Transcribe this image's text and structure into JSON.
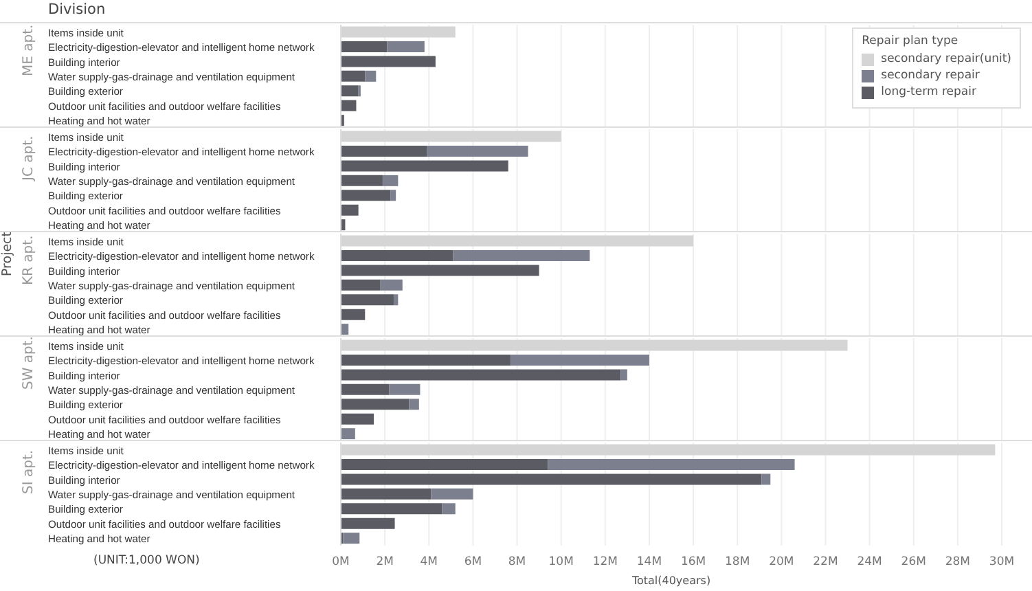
{
  "chart_data": [
    {
      "type": "bar",
      "orientation": "horizontal",
      "stacked": true,
      "ylabel": "ME apt.",
      "annotations": [
        "Division",
        "Project"
      ],
      "legend": "top right",
      "legend_title": "Repair plan type",
      "grid": "x",
      "tick_labels": "y",
      "xlim": [
        0,
        30
      ],
      "xticks": [
        0,
        2,
        4,
        6,
        8,
        10,
        12,
        14,
        16,
        18,
        20,
        22,
        24,
        26,
        28,
        30
      ],
      "categories": [
        "Items inside unit",
        "Electricity-digestion-elevator and intelligent home network",
        "Building interior",
        "Water supply-gas-drainage and ventilation equipment",
        "Building exterior",
        "Outdoor unit facilities and outdoor welfare facilities",
        "Heating and hot water"
      ],
      "series": [
        {
          "name": "long-term repair",
          "color": "#5a5b63",
          "values": [
            null,
            2.1,
            4.3,
            1.1,
            0.8,
            0.7,
            0.15
          ]
        },
        {
          "name": "secondary repair",
          "color": "#7b7f8e",
          "values": [
            null,
            1.7,
            null,
            0.5,
            0.1,
            null,
            null
          ]
        },
        {
          "name": "secondary repair(unit)",
          "color": "#d5d5d5",
          "values": [
            5.2,
            null,
            null,
            null,
            null,
            null,
            null
          ]
        }
      ]
    },
    {
      "type": "bar",
      "orientation": "horizontal",
      "stacked": true,
      "ylabel": "JC apt.",
      "grid": "x",
      "tick_labels": "y",
      "xlim": [
        0,
        30
      ],
      "xticks": [
        0,
        2,
        4,
        6,
        8,
        10,
        12,
        14,
        16,
        18,
        20,
        22,
        24,
        26,
        28,
        30
      ],
      "categories": [
        "Items inside unit",
        "Electricity-digestion-elevator and intelligent home network",
        "Building interior",
        "Water supply-gas-drainage and ventilation equipment",
        "Building exterior",
        "Outdoor unit facilities and outdoor welfare facilities",
        "Heating and hot water"
      ],
      "series": [
        {
          "color": "#5a5b63",
          "values": [
            null,
            3.9,
            7.6,
            1.9,
            2.25,
            0.8,
            0.2
          ]
        },
        {
          "color": "#7b7f8e",
          "values": [
            null,
            4.6,
            null,
            0.7,
            0.25,
            null,
            null
          ]
        },
        {
          "color": "#d5d5d5",
          "values": [
            10.0,
            null,
            null,
            null,
            null,
            null,
            null
          ]
        }
      ]
    },
    {
      "type": "bar",
      "orientation": "horizontal",
      "stacked": true,
      "ylabel": "KR apt.",
      "grid": "x",
      "tick_labels": "y",
      "xlim": [
        0,
        30
      ],
      "xticks": [
        0,
        2,
        4,
        6,
        8,
        10,
        12,
        14,
        16,
        18,
        20,
        22,
        24,
        26,
        28,
        30
      ],
      "categories": [
        "Items inside unit",
        "Electricity-digestion-elevator and intelligent home network",
        "Building interior",
        "Water supply-gas-drainage and ventilation equipment",
        "Building exterior",
        "Outdoor unit facilities and outdoor welfare facilities",
        "Heating and hot water"
      ],
      "series": [
        {
          "color": "#5a5b63",
          "values": [
            null,
            5.1,
            9.0,
            1.8,
            2.4,
            1.1,
            null
          ]
        },
        {
          "color": "#7b7f8e",
          "values": [
            null,
            6.2,
            null,
            1.0,
            0.2,
            null,
            0.35
          ]
        },
        {
          "color": "#d5d5d5",
          "values": [
            16.0,
            null,
            null,
            null,
            null,
            null,
            null
          ]
        }
      ]
    },
    {
      "type": "bar",
      "orientation": "horizontal",
      "stacked": true,
      "ylabel": "SW apt.",
      "grid": "x",
      "tick_labels": "y",
      "xlim": [
        0,
        30
      ],
      "xticks": [
        0,
        2,
        4,
        6,
        8,
        10,
        12,
        14,
        16,
        18,
        20,
        22,
        24,
        26,
        28,
        30
      ],
      "categories": [
        "Items inside unit",
        "Electricity-digestion-elevator and intelligent home network",
        "Building interior",
        "Water supply-gas-drainage and ventilation equipment",
        "Building exterior",
        "Outdoor unit facilities and outdoor welfare facilities",
        "Heating and hot water"
      ],
      "series": [
        {
          "color": "#5a5b63",
          "values": [
            null,
            7.7,
            12.7,
            2.2,
            3.1,
            1.5,
            null
          ]
        },
        {
          "color": "#7b7f8e",
          "values": [
            null,
            6.3,
            0.3,
            1.4,
            0.45,
            null,
            0.65
          ]
        },
        {
          "color": "#d5d5d5",
          "values": [
            23.0,
            null,
            null,
            null,
            null,
            null,
            null
          ]
        }
      ]
    },
    {
      "type": "bar",
      "orientation": "horizontal",
      "stacked": true,
      "ylabel": "SI apt.",
      "xlabel": "Total(40years)",
      "annotations": [
        "(UNIT:1,000 WON)"
      ],
      "grid": "x",
      "xlim": [
        0,
        30
      ],
      "xticks": [
        {
          "value": 0,
          "label": "0M"
        },
        {
          "value": 2,
          "label": "2M"
        },
        {
          "value": 4,
          "label": "4M"
        },
        {
          "value": 6,
          "label": "6M"
        },
        {
          "value": 8,
          "label": "8M"
        },
        {
          "value": 10,
          "label": "10M"
        },
        {
          "value": 12,
          "label": "12M"
        },
        {
          "value": 14,
          "label": "14M"
        },
        {
          "value": 16,
          "label": "16M"
        },
        {
          "value": 18,
          "label": "18M"
        },
        {
          "value": 20,
          "label": "20M"
        },
        {
          "value": 22,
          "label": "22M"
        },
        {
          "value": 24,
          "label": "24M"
        },
        {
          "value": 26,
          "label": "26M"
        },
        {
          "value": 28,
          "label": "28M"
        },
        {
          "value": 30,
          "label": "30M"
        }
      ],
      "categories": [
        "Items inside unit",
        "Electricity-digestion-elevator and intelligent home network",
        "Building interior",
        "Water supply-gas-drainage and ventilation equipment",
        "Building exterior",
        "Outdoor unit facilities and outdoor welfare facilities",
        "Heating and hot water"
      ],
      "series": [
        {
          "color": "#5a5b63",
          "values": [
            null,
            9.4,
            19.1,
            4.1,
            4.6,
            2.45,
            0.1
          ]
        },
        {
          "color": "#7b7f8e",
          "values": [
            null,
            11.2,
            0.4,
            1.9,
            0.6,
            null,
            0.75
          ]
        },
        {
          "color": "#d5d5d5",
          "values": [
            29.7,
            null,
            null,
            null,
            null,
            null,
            null
          ]
        }
      ]
    }
  ]
}
